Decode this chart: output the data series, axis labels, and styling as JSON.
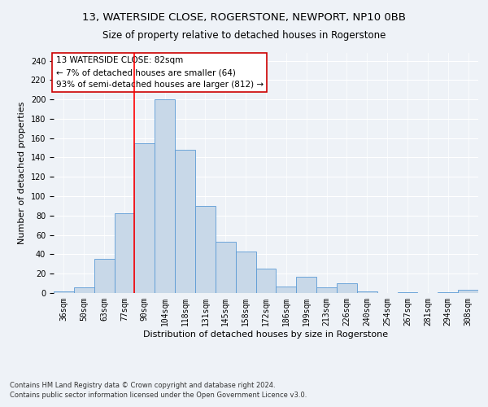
{
  "title": "13, WATERSIDE CLOSE, ROGERSTONE, NEWPORT, NP10 0BB",
  "subtitle": "Size of property relative to detached houses in Rogerstone",
  "xlabel": "Distribution of detached houses by size in Rogerstone",
  "ylabel": "Number of detached properties",
  "categories": [
    "36sqm",
    "50sqm",
    "63sqm",
    "77sqm",
    "90sqm",
    "104sqm",
    "118sqm",
    "131sqm",
    "145sqm",
    "158sqm",
    "172sqm",
    "186sqm",
    "199sqm",
    "213sqm",
    "226sqm",
    "240sqm",
    "254sqm",
    "267sqm",
    "281sqm",
    "294sqm",
    "308sqm"
  ],
  "values": [
    2,
    6,
    35,
    82,
    155,
    200,
    148,
    90,
    53,
    43,
    25,
    7,
    17,
    6,
    10,
    2,
    0,
    1,
    0,
    1,
    3
  ],
  "bar_color": "#c8d8e8",
  "bar_edge_color": "#5b9bd5",
  "red_line_x": 3.5,
  "annotation_title": "13 WATERSIDE CLOSE: 82sqm",
  "annotation_line1": "← 7% of detached houses are smaller (64)",
  "annotation_line2": "93% of semi-detached houses are larger (812) →",
  "annotation_box_color": "#ffffff",
  "annotation_box_edge": "#cc0000",
  "footnote1": "Contains HM Land Registry data © Crown copyright and database right 2024.",
  "footnote2": "Contains public sector information licensed under the Open Government Licence v3.0.",
  "ylim": [
    0,
    248
  ],
  "yticks": [
    0,
    20,
    40,
    60,
    80,
    100,
    120,
    140,
    160,
    180,
    200,
    220,
    240
  ],
  "background_color": "#eef2f7",
  "grid_color": "#ffffff",
  "title_fontsize": 9.5,
  "subtitle_fontsize": 8.5,
  "axis_label_fontsize": 8,
  "tick_fontsize": 7,
  "annotation_fontsize": 7.5,
  "footnote_fontsize": 6
}
